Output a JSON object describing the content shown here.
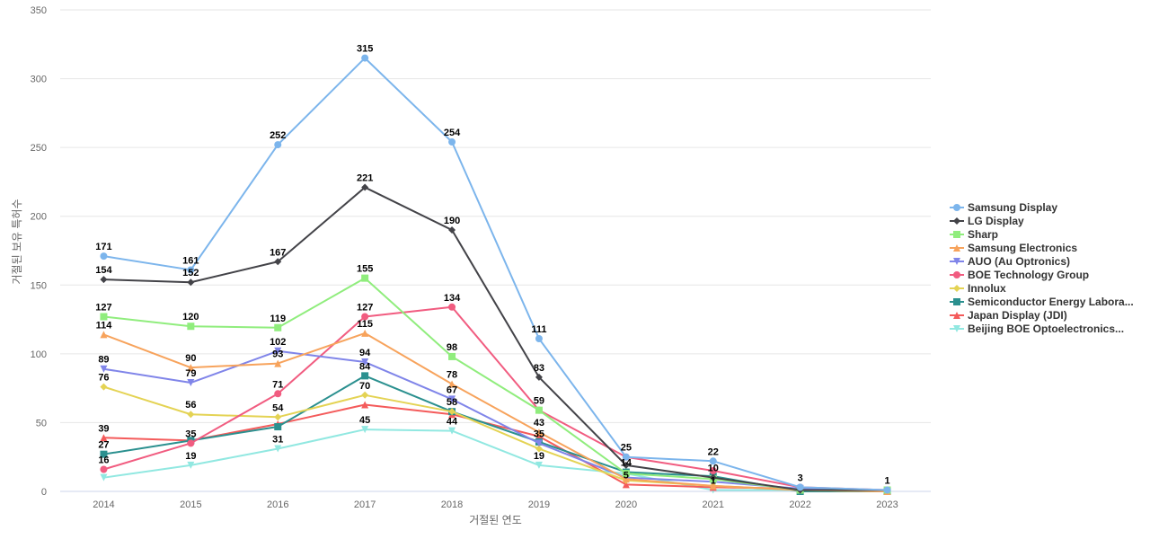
{
  "chart_data": {
    "type": "line",
    "title": "",
    "xlabel": "거절된 연도",
    "ylabel": "거절된 보유 특허수",
    "x": [
      "2014",
      "2015",
      "2016",
      "2017",
      "2018",
      "2019",
      "2020",
      "2021",
      "2022",
      "2023"
    ],
    "ylim": [
      0,
      350
    ],
    "yticks": [
      0,
      50,
      100,
      150,
      200,
      250,
      300,
      350
    ],
    "grid": true,
    "legend_position": "right",
    "series": [
      {
        "name": "Samsung Display",
        "color": "#7cb5ec",
        "marker": "circle",
        "values": [
          171,
          161,
          252,
          315,
          254,
          111,
          25,
          22,
          3,
          1
        ],
        "labels": [
          true,
          true,
          true,
          true,
          true,
          true,
          true,
          true,
          true,
          true
        ]
      },
      {
        "name": "LG Display",
        "color": "#434348",
        "marker": "diamond",
        "values": [
          154,
          152,
          167,
          221,
          190,
          83,
          19,
          10,
          1,
          1
        ],
        "labels": [
          true,
          true,
          true,
          true,
          true,
          true,
          false,
          true,
          false,
          false
        ]
      },
      {
        "name": "Sharp",
        "color": "#90ed7d",
        "marker": "square",
        "values": [
          127,
          120,
          119,
          155,
          98,
          59,
          13,
          9,
          1,
          1
        ],
        "labels": [
          true,
          true,
          true,
          true,
          true,
          false,
          false,
          false,
          false,
          false
        ]
      },
      {
        "name": "Samsung Electronics",
        "color": "#f7a35c",
        "marker": "triangle",
        "values": [
          114,
          90,
          93,
          115,
          78,
          43,
          9,
          4,
          1,
          0
        ],
        "labels": [
          true,
          true,
          true,
          true,
          true,
          true,
          false,
          false,
          false,
          false
        ]
      },
      {
        "name": "AUO (Au Optronics)",
        "color": "#8085e9",
        "marker": "triangle-down",
        "values": [
          89,
          79,
          102,
          94,
          67,
          35,
          10,
          7,
          2,
          0
        ],
        "labels": [
          true,
          true,
          true,
          true,
          true,
          true,
          false,
          false,
          false,
          false
        ]
      },
      {
        "name": "BOE Technology Group",
        "color": "#f15c80",
        "marker": "circle",
        "values": [
          16,
          35,
          71,
          127,
          134,
          59,
          25,
          15,
          3,
          1
        ],
        "labels": [
          true,
          true,
          true,
          true,
          true,
          true,
          false,
          false,
          false,
          false
        ]
      },
      {
        "name": "Innolux",
        "color": "#e4d354",
        "marker": "diamond",
        "values": [
          76,
          56,
          54,
          70,
          58,
          31,
          8,
          4,
          1,
          0
        ],
        "labels": [
          true,
          true,
          true,
          true,
          true,
          false,
          false,
          false,
          false,
          false
        ]
      },
      {
        "name": "Semiconductor Energy Labora...",
        "color": "#2b908f",
        "marker": "square",
        "values": [
          27,
          37,
          47,
          84,
          58,
          36,
          14,
          11,
          0,
          0
        ],
        "labels": [
          true,
          false,
          false,
          true,
          false,
          false,
          true,
          false,
          false,
          false
        ]
      },
      {
        "name": "Japan Display (JDI)",
        "color": "#f45b5b",
        "marker": "triangle",
        "values": [
          39,
          37,
          49,
          63,
          56,
          40,
          5,
          3,
          2,
          0
        ],
        "labels": [
          true,
          false,
          false,
          false,
          false,
          false,
          true,
          false,
          false,
          false
        ]
      },
      {
        "name": "Beijing BOE Optoelectronics...",
        "color": "#91e8e1",
        "marker": "triangle-down",
        "values": [
          10,
          19,
          31,
          45,
          44,
          19,
          13,
          1,
          1,
          1
        ],
        "labels": [
          false,
          true,
          true,
          true,
          true,
          true,
          false,
          true,
          false,
          false
        ]
      }
    ]
  }
}
